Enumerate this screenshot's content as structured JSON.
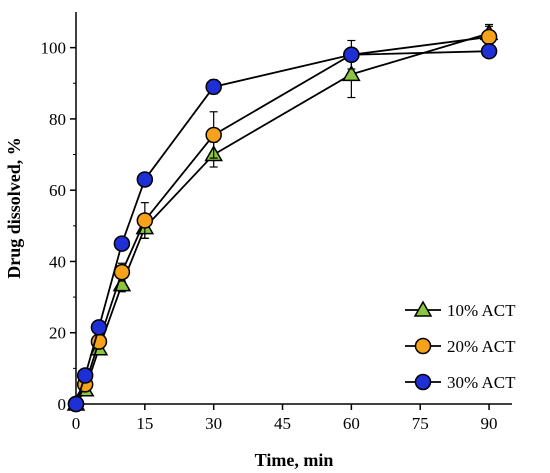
{
  "chart_data": {
    "type": "line",
    "xlabel": "Time, min",
    "ylabel": "Drug dissolved, %",
    "xlim": [
      0,
      95
    ],
    "ylim": [
      0,
      110
    ],
    "x_ticks": [
      0,
      15,
      30,
      45,
      60,
      75,
      90
    ],
    "y_ticks": [
      0,
      20,
      40,
      60,
      80,
      100
    ],
    "grid": false,
    "legend_position": "bottom-right",
    "error_bars": true,
    "series": [
      {
        "name": "10% ACT",
        "marker": "triangle",
        "color": "#8cc63f",
        "points": [
          {
            "x": 0,
            "y": 0,
            "err": 0
          },
          {
            "x": 2,
            "y": 4,
            "err": 1
          },
          {
            "x": 5,
            "y": 15.5,
            "err": 1
          },
          {
            "x": 10,
            "y": 33.5,
            "err": 2
          },
          {
            "x": 15,
            "y": 49.5,
            "err": 3
          },
          {
            "x": 30,
            "y": 70,
            "err": 3.5
          },
          {
            "x": 60,
            "y": 92.5,
            "err": 6.5
          },
          {
            "x": 90,
            "y": 104,
            "err": 2.5
          }
        ]
      },
      {
        "name": "20% ACT",
        "marker": "circle",
        "color": "#f7a21b",
        "points": [
          {
            "x": 0,
            "y": 0,
            "err": 0
          },
          {
            "x": 2,
            "y": 5.5,
            "err": 1
          },
          {
            "x": 5,
            "y": 17.5,
            "err": 1.5
          },
          {
            "x": 10,
            "y": 37,
            "err": 2.5
          },
          {
            "x": 15,
            "y": 51.5,
            "err": 5
          },
          {
            "x": 30,
            "y": 75.5,
            "err": 6.5
          },
          {
            "x": 60,
            "y": 98,
            "err": 4
          },
          {
            "x": 90,
            "y": 103,
            "err": 3
          }
        ]
      },
      {
        "name": "30% ACT",
        "marker": "circle",
        "color": "#1f2fd6",
        "points": [
          {
            "x": 0,
            "y": 0,
            "err": 0
          },
          {
            "x": 2,
            "y": 8,
            "err": 1
          },
          {
            "x": 5,
            "y": 21.5,
            "err": 1
          },
          {
            "x": 10,
            "y": 45,
            "err": 1
          },
          {
            "x": 15,
            "y": 63,
            "err": 1
          },
          {
            "x": 30,
            "y": 89,
            "err": 2
          },
          {
            "x": 60,
            "y": 98,
            "err": 1
          },
          {
            "x": 90,
            "y": 99,
            "err": 1
          }
        ]
      }
    ]
  }
}
